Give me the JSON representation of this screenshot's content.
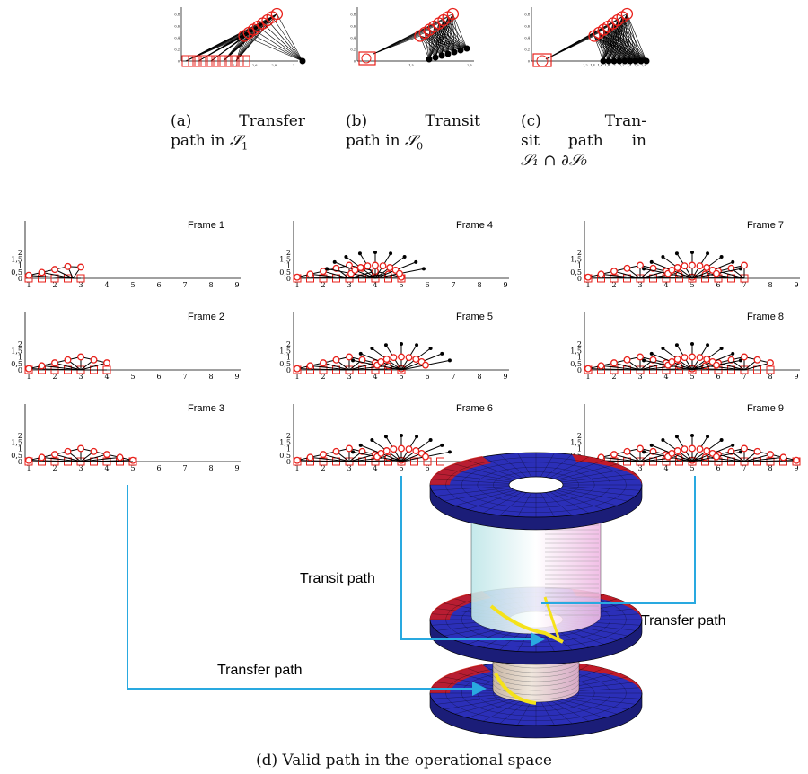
{
  "subfigures_top": [
    {
      "label": "(a)",
      "caption_line1": "Transfer",
      "caption_line2": "path in",
      "set": "𝒮",
      "sub": "1"
    },
    {
      "label": "(b)",
      "caption_line1": "Transit",
      "caption_line2": "path in",
      "set": "𝒮",
      "sub": "0"
    },
    {
      "label": "(c)",
      "caption_line1": "Tran-",
      "caption_line2": "sit path in",
      "caption_line3": "𝒮₁ ∩ ∂𝒮₀"
    }
  ],
  "frames": [
    "Frame 1",
    "Frame 2",
    "Frame 3",
    "Frame 4",
    "Frame 5",
    "Frame 6",
    "Frame 7",
    "Frame 8",
    "Frame 9"
  ],
  "frame_axes": {
    "x_ticks": [
      "1",
      "2",
      "3",
      "4",
      "5",
      "6",
      "7",
      "8",
      "9"
    ],
    "y_ticks": [
      "0",
      "0,5",
      "1",
      "1,5",
      "2"
    ]
  },
  "top_axes": {
    "a_x_ticks": [
      "2,4",
      "2,6",
      "2,8",
      "3"
    ],
    "b_x_ticks": [
      "1,5",
      "2,5"
    ],
    "c_x_ticks": [
      "1,2",
      "1,4",
      "1,6",
      "1,8",
      "2",
      "2,2",
      "2,4",
      "2,6",
      "2,8"
    ],
    "y_ticks": [
      "0,8",
      "0,6",
      "0,4",
      "0,2",
      "0"
    ]
  },
  "labels": {
    "transit_path": "Transit path",
    "transfer_path_right": "Transfer path",
    "transfer_path_left": "Transfer path"
  },
  "caption_d": "(d) Valid path in the operational space",
  "colors": {
    "robot_red": "#e8211b",
    "link_black": "#000000",
    "connector_blue": "#29a9e0",
    "disk_blue": "#2b2fb8",
    "disk_red": "#d11a1a",
    "path_yellow": "#f5e21a"
  }
}
